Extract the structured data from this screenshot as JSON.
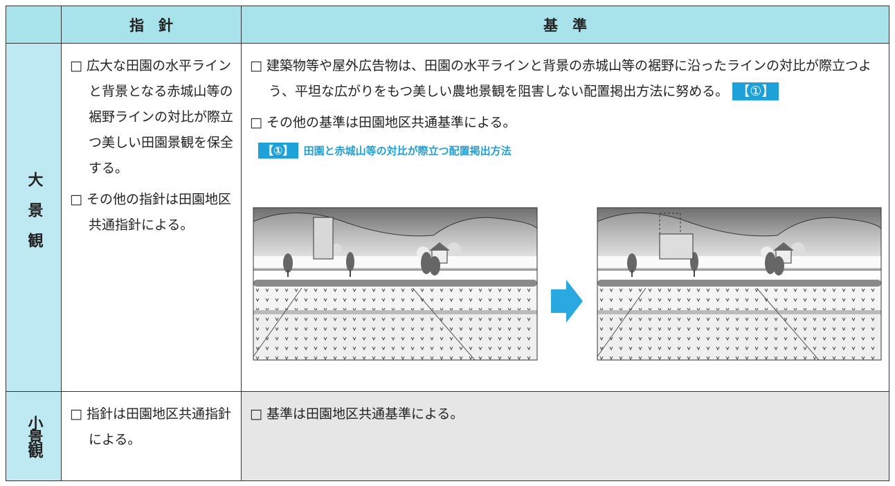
{
  "table": {
    "header": [
      "指　針",
      "基　準"
    ],
    "rows": [
      {
        "label": "大景観",
        "guidelines": [
          "□ 広大な田園の水平ラインと背景となる赤城山等の裾野ラインの対比が際立つ美しい田園景観を保全する。",
          "□ その他の指針は田園地区共通指針による。"
        ],
        "standards": [
          {
            "text": "□ 建築物等や屋外広告物は、田園の水平ラインと背景の赤城山等の裾野に沿ったラインの対比が際立つよう、平坦な広がりをもつ美しい農地景観を阻害しない配置掲出方法に努める。",
            "tag": "【①】"
          },
          {
            "text": "□ その他の基準は田園地区共通基準による。"
          }
        ],
        "figure": {
          "tag": "【①】",
          "caption": "田園と赤城山等の対比が際立つ配置掲出方法"
        }
      },
      {
        "label": "小景観",
        "guidelines": [
          "□ 指針は田園地区共通指針による。"
        ],
        "standards": [
          {
            "text": "□ 基準は田園地区共通基準による。"
          }
        ]
      }
    ]
  }
}
